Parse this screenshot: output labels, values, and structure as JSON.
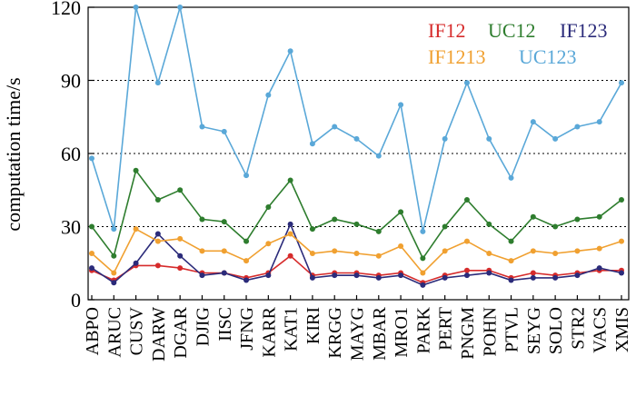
{
  "chart_data": {
    "type": "line",
    "title": "",
    "xlabel": "",
    "ylabel": "computation time/s",
    "ylim": [
      0,
      120
    ],
    "yticks": [
      0,
      30,
      60,
      90,
      120
    ],
    "grid": "horizontal dotted",
    "legend_position": "top-right",
    "categories": [
      "ABPO",
      "ARUC",
      "CUSV",
      "DARW",
      "DGAR",
      "DJIG",
      "IISC",
      "JFNG",
      "KARR",
      "KAT1",
      "KIRI",
      "KRGG",
      "MAYG",
      "MBAR",
      "MRO1",
      "PARK",
      "PERT",
      "PNGM",
      "POHN",
      "PTVL",
      "SEYG",
      "SOLO",
      "STR2",
      "VACS",
      "XMIS"
    ],
    "series": [
      {
        "name": "IF12",
        "color": "#d62b2b",
        "values": [
          12,
          8,
          14,
          14,
          13,
          11,
          11,
          9,
          11,
          18,
          10,
          11,
          11,
          10,
          11,
          7,
          10,
          12,
          12,
          9,
          11,
          10,
          11,
          12,
          12
        ]
      },
      {
        "name": "UC12",
        "color": "#2e7d2e",
        "values": [
          30,
          18,
          53,
          41,
          45,
          33,
          32,
          24,
          38,
          49,
          29,
          33,
          31,
          28,
          36,
          17,
          30,
          41,
          31,
          24,
          34,
          30,
          33,
          34,
          41
        ]
      },
      {
        "name": "IF123",
        "color": "#2b2b7a",
        "values": [
          13,
          7,
          15,
          27,
          18,
          10,
          11,
          8,
          10,
          31,
          9,
          10,
          10,
          9,
          10,
          6,
          9,
          10,
          11,
          8,
          9,
          9,
          10,
          13,
          11
        ]
      },
      {
        "name": "IF1213",
        "color": "#f0a030",
        "values": [
          19,
          11,
          29,
          24,
          25,
          20,
          20,
          16,
          23,
          27,
          19,
          20,
          19,
          18,
          22,
          11,
          20,
          24,
          19,
          16,
          20,
          19,
          20,
          21,
          24
        ]
      },
      {
        "name": "UC123",
        "color": "#5aa8d8",
        "values": [
          58,
          29,
          120,
          89,
          120,
          71,
          69,
          51,
          84,
          102,
          64,
          71,
          66,
          59,
          80,
          28,
          66,
          89,
          66,
          50,
          73,
          66,
          71,
          73,
          89
        ]
      }
    ]
  }
}
